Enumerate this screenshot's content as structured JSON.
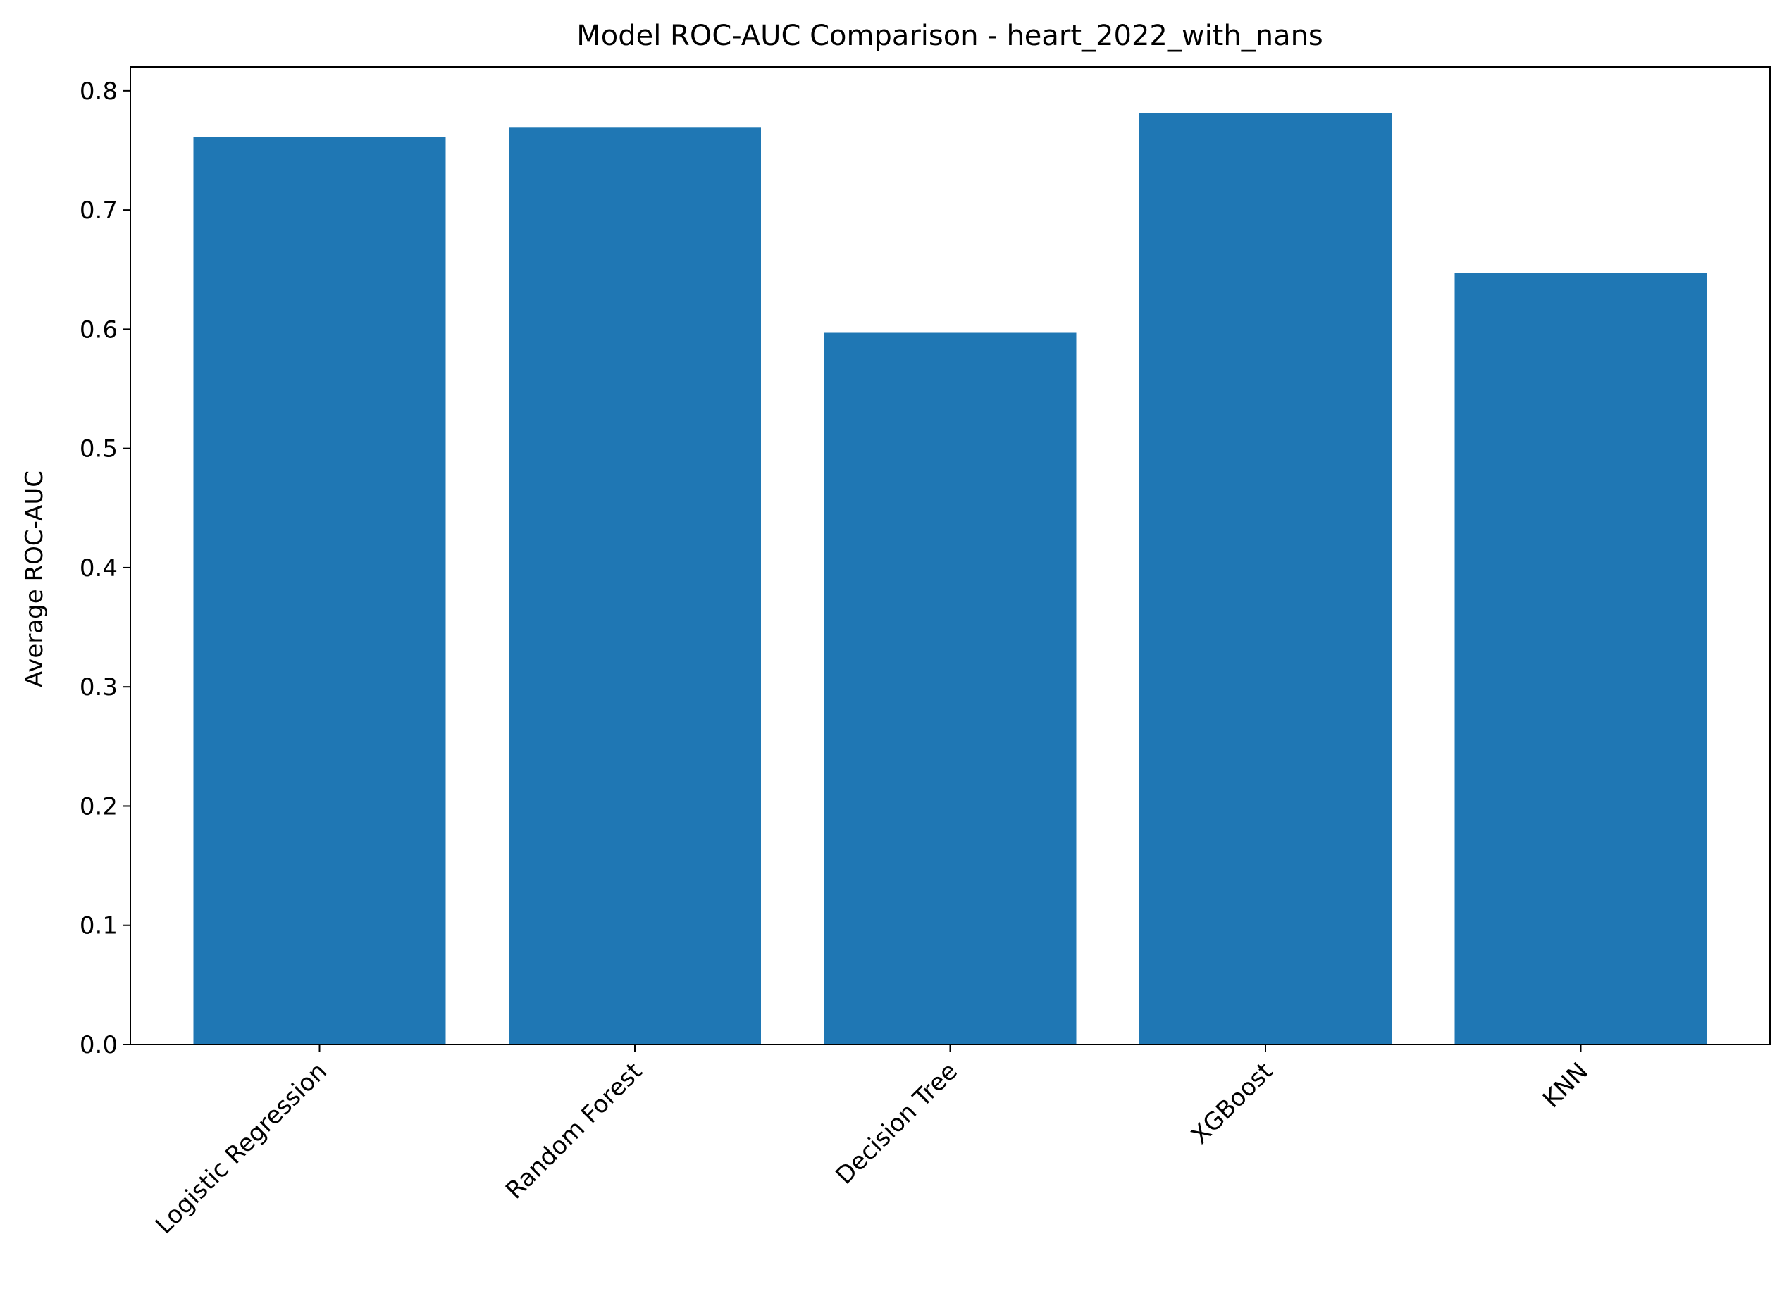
{
  "chart_data": {
    "type": "bar",
    "title": "Model ROC-AUC Comparison - heart_2022_with_nans",
    "xlabel": "",
    "ylabel": "Average ROC-AUC",
    "categories": [
      "Logistic Regression",
      "Random Forest",
      "Decision Tree",
      "XGBoost",
      "KNN"
    ],
    "values": [
      0.761,
      0.769,
      0.597,
      0.781,
      0.647
    ],
    "ylim": [
      0,
      0.82
    ],
    "yticks": [
      0.0,
      0.1,
      0.2,
      0.3,
      0.4,
      0.5,
      0.6,
      0.7,
      0.8
    ],
    "ytick_labels": [
      "0.0",
      "0.1",
      "0.2",
      "0.3",
      "0.4",
      "0.5",
      "0.6",
      "0.7",
      "0.8"
    ],
    "grid": false,
    "legend": "none",
    "bar_color": "#1f77b4",
    "axis_color": "#000000"
  }
}
